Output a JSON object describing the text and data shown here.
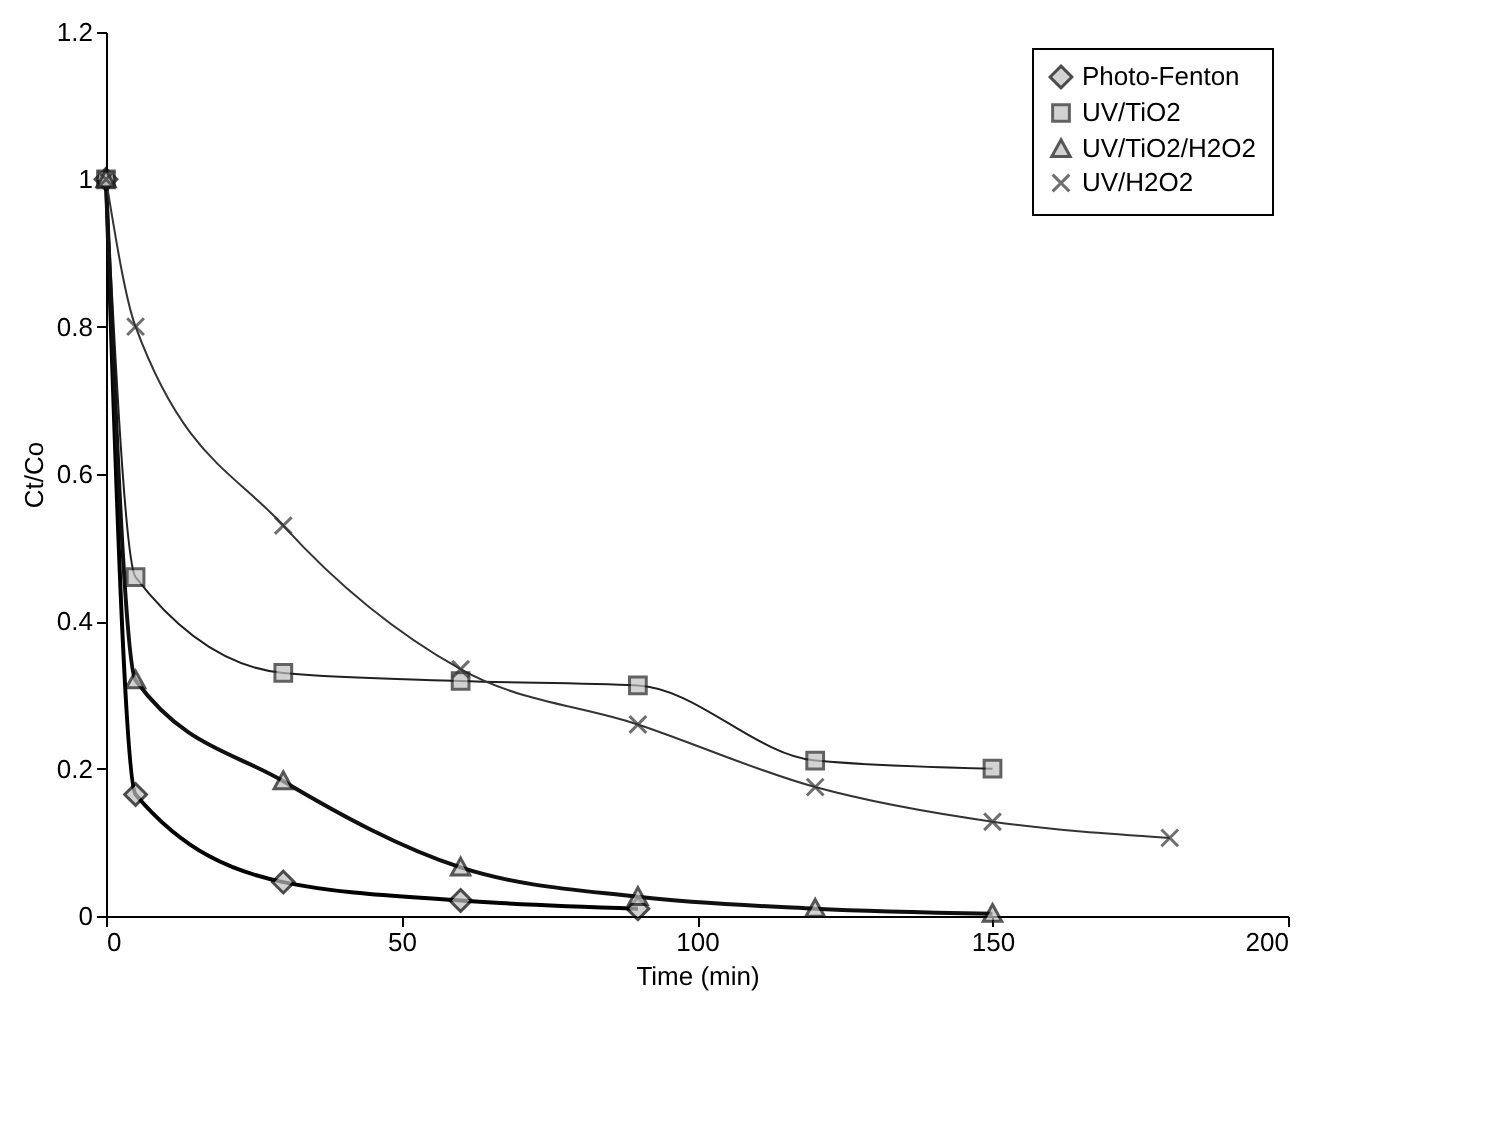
{
  "chart_data": {
    "type": "line",
    "xlabel": "Time (min)",
    "ylabel": "Ct/Co",
    "xlim": [
      0,
      200
    ],
    "xticks": [
      0,
      50,
      100,
      150,
      200
    ],
    "ylim": [
      0,
      1.2
    ],
    "yticks": [
      0,
      0.2,
      0.4,
      0.6,
      0.8,
      1,
      1.2
    ],
    "grid": false,
    "legend": "top right",
    "line_style": "solid",
    "series": [
      {
        "name": "Photo-Fenton",
        "color": "#000000",
        "marker": "diamond",
        "x": [
          0,
          5,
          30,
          60,
          90
        ],
        "values": [
          1,
          0.165,
          0.046,
          0.021,
          0.01
        ]
      },
      {
        "name": "UV/TiO2",
        "color": "#202020",
        "marker": "square",
        "x": [
          0,
          5,
          30,
          60,
          90,
          120,
          150
        ],
        "values": [
          1,
          0.46,
          0.33,
          0.319,
          0.313,
          0.211,
          0.2
        ]
      },
      {
        "name": "UV/TiO2/H2O2",
        "color": "#101010",
        "marker": "triangle",
        "x": [
          0,
          5,
          30,
          60,
          90,
          120,
          150
        ],
        "values": [
          1,
          0.32,
          0.183,
          0.066,
          0.026,
          0.01,
          0.003
        ]
      },
      {
        "name": "UV/H2O2",
        "color": "#333333",
        "marker": "cross",
        "x": [
          0,
          5,
          30,
          60,
          90,
          120,
          150,
          180
        ],
        "values": [
          1,
          0.8,
          0.53,
          0.335,
          0.26,
          0.175,
          0.128,
          0.106
        ]
      }
    ]
  }
}
